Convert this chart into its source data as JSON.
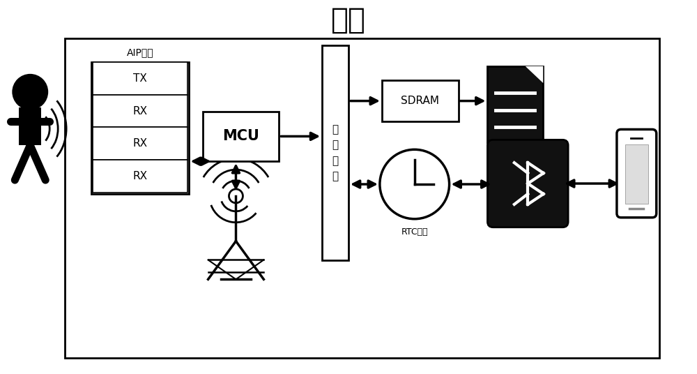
{
  "title": "板卡",
  "title_fontsize": 30,
  "bg_color": "#ffffff",
  "box_color": "#000000",
  "box_facecolor": "#ffffff",
  "dark_facecolor": "#111111",
  "fig_width": 10.0,
  "fig_height": 5.36,
  "labels": {
    "aip": "AIP天线",
    "tx": "TX",
    "rx1": "RX",
    "rx2": "RX",
    "rx3": "RX",
    "mcu": "MCU",
    "bus": "数\n据\n总\n线",
    "sdram": "SDRAM",
    "rtc": "RTC时钟"
  }
}
